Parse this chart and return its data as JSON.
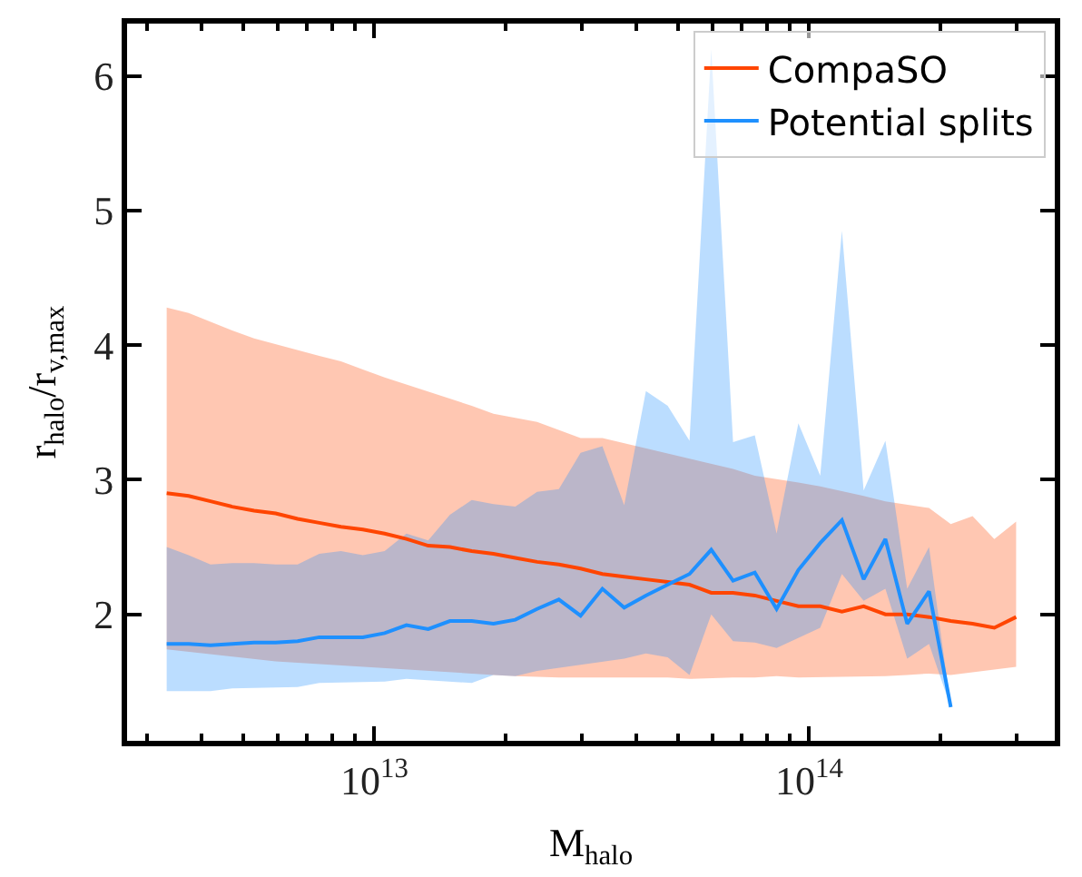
{
  "chart_data": {
    "type": "line",
    "xlabel": "M$_{halo}$",
    "ylabel": "r$_{halo}$/r$_{v,max}$",
    "x": [
      3330000000000.0,
      3740000000000.0,
      4200000000000.0,
      4710000000000.0,
      5290000000000.0,
      5930000000000.0,
      6660000000000.0,
      7470000000000.0,
      8380000000000.0,
      9410000000000.0,
      10560000000000.0,
      11850000000000.0,
      13300000000000.0,
      14920000000000.0,
      16750000000000.0,
      18790000000000.0,
      21090000000000.0,
      23670000000000.0,
      26560000000000.0,
      29800000000000.0,
      33450000000000.0,
      37540000000000.0,
      42120000000000.0,
      47270000000000.0,
      53050000000000.0,
      59530000000000.0,
      66810000000000.0,
      74970000000000.0,
      84140000000000.0,
      94420000000000.0,
      106000000000000.0,
      118900000000000.0,
      133400000000000.0,
      149700000000000.0,
      168000000000000.0,
      188600000000000.0,
      211600000000000.0,
      237500000000000.0,
      266500000000000.0,
      299100000000000.0
    ],
    "series": [
      {
        "name": "CompaSO",
        "color": "#ff4500",
        "values": [
          2.9,
          2.88,
          2.84,
          2.8,
          2.77,
          2.75,
          2.71,
          2.68,
          2.65,
          2.63,
          2.6,
          2.56,
          2.51,
          2.5,
          2.47,
          2.45,
          2.42,
          2.39,
          2.37,
          2.34,
          2.3,
          2.28,
          2.26,
          2.24,
          2.22,
          2.16,
          2.16,
          2.14,
          2.1,
          2.06,
          2.06,
          2.02,
          2.06,
          2.0,
          2.0,
          1.98,
          1.95,
          1.93,
          1.9,
          1.98
        ],
        "lower": [
          1.74,
          1.72,
          1.7,
          1.68,
          1.67,
          1.65,
          1.64,
          1.63,
          1.62,
          1.61,
          1.6,
          1.58,
          1.57,
          1.56,
          1.56,
          1.55,
          1.54,
          1.53,
          1.53,
          1.53,
          1.53,
          1.54,
          1.53,
          1.53,
          1.52,
          1.53,
          1.53,
          1.53,
          1.54,
          1.53,
          1.53,
          1.53,
          1.53,
          1.54,
          1.55,
          1.56,
          1.55,
          1.57,
          1.58,
          1.61
        ],
        "upper": [
          4.28,
          4.24,
          4.18,
          4.11,
          4.05,
          4.0,
          3.96,
          3.92,
          3.88,
          3.82,
          3.76,
          3.71,
          3.66,
          3.6,
          3.55,
          3.49,
          3.46,
          3.43,
          3.37,
          3.31,
          3.31,
          3.28,
          3.24,
          3.2,
          3.16,
          3.12,
          3.08,
          3.03,
          3.0,
          2.98,
          2.95,
          2.92,
          2.88,
          2.84,
          2.81,
          2.79,
          2.67,
          2.73,
          2.56,
          2.69
        ]
      },
      {
        "name": "Potential splits",
        "color": "#1e90ff",
        "values": [
          1.78,
          1.78,
          1.77,
          1.78,
          1.79,
          1.79,
          1.8,
          1.83,
          1.83,
          1.83,
          1.86,
          1.92,
          1.89,
          1.95,
          1.95,
          1.93,
          1.96,
          2.04,
          2.11,
          1.99,
          2.19,
          2.05,
          2.14,
          2.22,
          2.3,
          2.48,
          2.25,
          2.31,
          2.04,
          2.33,
          2.53,
          2.7,
          2.26,
          2.56,
          1.93,
          2.17,
          1.31,
          null,
          null,
          null
        ],
        "lower": [
          1.43,
          1.43,
          1.43,
          1.45,
          1.45,
          1.46,
          1.46,
          1.49,
          1.49,
          1.49,
          1.5,
          1.52,
          1.51,
          1.51,
          1.49,
          1.55,
          1.54,
          1.58,
          1.6,
          1.63,
          1.65,
          1.67,
          1.71,
          1.68,
          1.55,
          2.0,
          1.8,
          1.79,
          1.75,
          1.82,
          1.9,
          2.3,
          2.1,
          2.19,
          1.67,
          1.78,
          1.31,
          null,
          null,
          null
        ],
        "upper": [
          2.5,
          2.44,
          2.37,
          2.38,
          2.38,
          2.37,
          2.37,
          2.45,
          2.47,
          2.44,
          2.47,
          2.6,
          2.55,
          2.74,
          2.85,
          2.82,
          2.8,
          2.91,
          2.93,
          3.2,
          3.25,
          2.81,
          3.66,
          3.55,
          3.29,
          6.2,
          3.28,
          3.33,
          2.6,
          3.42,
          3.03,
          4.85,
          2.92,
          3.29,
          2.19,
          2.5,
          1.31,
          null,
          null,
          null
        ]
      }
    ],
    "log": "x",
    "xlim": [
      2700000000000.0,
      367000000000000.0
    ],
    "xticks": [
      {
        "value": 3000000000000.0,
        "label": null
      },
      {
        "value": 4000000000000.0,
        "label": null
      },
      {
        "value": 5000000000000.0,
        "label": null
      },
      {
        "value": 6000000000000.0,
        "label": null
      },
      {
        "value": 7000000000000.0,
        "label": null
      },
      {
        "value": 8000000000000.0,
        "label": null
      },
      {
        "value": 9000000000000.0,
        "label": null
      },
      {
        "value": 10000000000000.0,
        "label": "10$^{13}$"
      },
      {
        "value": 20000000000000.0,
        "label": null
      },
      {
        "value": 30000000000000.0,
        "label": null
      },
      {
        "value": 40000000000000.0,
        "label": null
      },
      {
        "value": 50000000000000.0,
        "label": null
      },
      {
        "value": 60000000000000.0,
        "label": null
      },
      {
        "value": 70000000000000.0,
        "label": null
      },
      {
        "value": 80000000000000.0,
        "label": null
      },
      {
        "value": 90000000000000.0,
        "label": null
      },
      {
        "value": 100000000000000.0,
        "label": "10$^{14}$"
      },
      {
        "value": 200000000000000.0,
        "label": null
      },
      {
        "value": 300000000000000.0,
        "label": null
      }
    ],
    "ylim": [
      1.06,
      6.39
    ],
    "yticks": [
      2,
      3,
      4,
      5,
      6
    ],
    "legend": "top right",
    "marker": "none",
    "line_style": "solid"
  }
}
